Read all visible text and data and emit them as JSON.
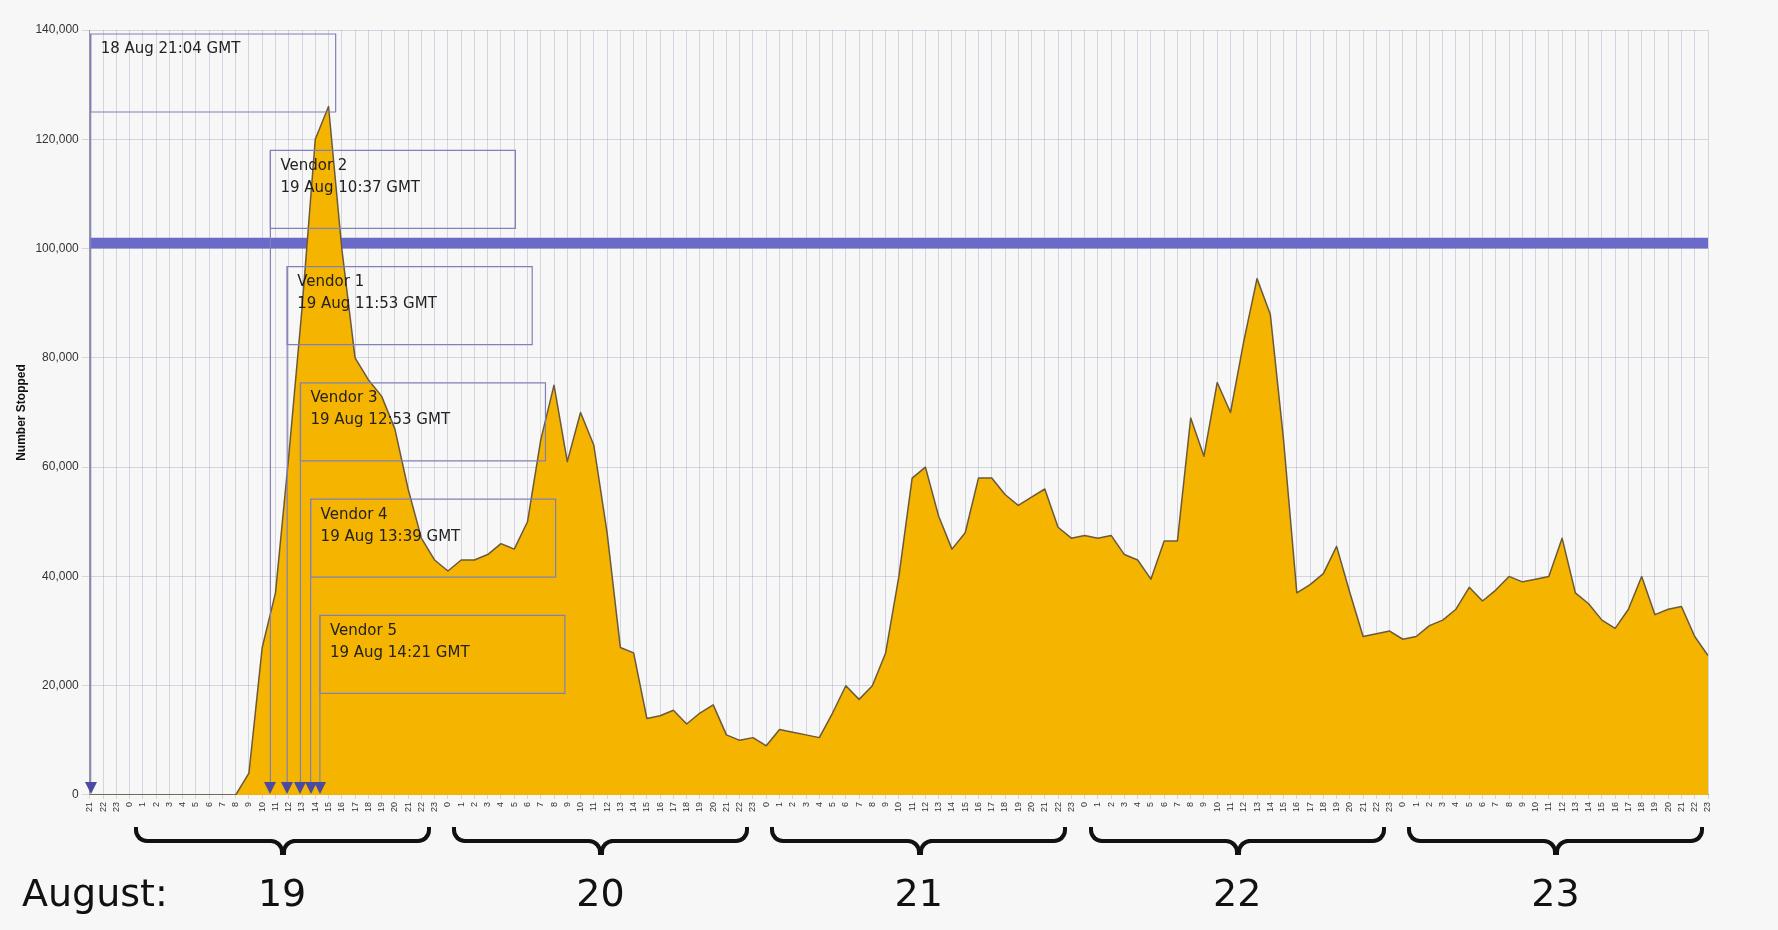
{
  "chart_data": {
    "type": "area",
    "ylabel": "Number Stopped",
    "xlim": [
      "--08-18T21:00",
      "--08-23T23:00"
    ],
    "ylim": [
      0,
      140000
    ],
    "yticks": [
      {
        "value": 0,
        "label": "0"
      },
      {
        "value": 20000,
        "label": "20,000"
      },
      {
        "value": 40000,
        "label": "40,000"
      },
      {
        "value": 60000,
        "label": "60,000"
      },
      {
        "value": 80000,
        "label": "80,000"
      },
      {
        "value": 100000,
        "label": "100,000"
      },
      {
        "value": 120000,
        "label": "120,000"
      },
      {
        "value": 140000,
        "label": "140,000"
      }
    ],
    "xticks": [
      {
        "value": "--08-18T21:00",
        "label": "21"
      },
      {
        "value": "--08-18T22:00",
        "label": "22"
      },
      {
        "value": "--08-18T23:00",
        "label": "23"
      },
      {
        "value": "--08-19T00:00",
        "label": "0"
      },
      {
        "value": "--08-19T01:00",
        "label": "1"
      },
      {
        "value": "--08-19T02:00",
        "label": "2"
      },
      {
        "value": "--08-19T03:00",
        "label": "3"
      },
      {
        "value": "--08-19T04:00",
        "label": "4"
      },
      {
        "value": "--08-19T05:00",
        "label": "5"
      },
      {
        "value": "--08-19T06:00",
        "label": "6"
      },
      {
        "value": "--08-19T07:00",
        "label": "7"
      },
      {
        "value": "--08-19T08:00",
        "label": "8"
      },
      {
        "value": "--08-19T09:00",
        "label": "9"
      },
      {
        "value": "--08-19T10:00",
        "label": "10"
      },
      {
        "value": "--08-19T11:00",
        "label": "11"
      },
      {
        "value": "--08-19T12:00",
        "label": "12"
      },
      {
        "value": "--08-19T13:00",
        "label": "13"
      },
      {
        "value": "--08-19T14:00",
        "label": "14"
      },
      {
        "value": "--08-19T15:00",
        "label": "15"
      },
      {
        "value": "--08-19T16:00",
        "label": "16"
      },
      {
        "value": "--08-19T17:00",
        "label": "17"
      },
      {
        "value": "--08-19T18:00",
        "label": "18"
      },
      {
        "value": "--08-19T19:00",
        "label": "19"
      },
      {
        "value": "--08-19T20:00",
        "label": "20"
      },
      {
        "value": "--08-19T21:00",
        "label": "21"
      },
      {
        "value": "--08-19T22:00",
        "label": "22"
      },
      {
        "value": "--08-19T23:00",
        "label": "23"
      },
      {
        "value": "--08-20T00:00",
        "label": "0"
      },
      {
        "value": "--08-20T01:00",
        "label": "1"
      },
      {
        "value": "--08-20T02:00",
        "label": "2"
      },
      {
        "value": "--08-20T03:00",
        "label": "3"
      },
      {
        "value": "--08-20T04:00",
        "label": "4"
      },
      {
        "value": "--08-20T05:00",
        "label": "5"
      },
      {
        "value": "--08-20T06:00",
        "label": "6"
      },
      {
        "value": "--08-20T07:00",
        "label": "7"
      },
      {
        "value": "--08-20T08:00",
        "label": "8"
      },
      {
        "value": "--08-20T09:00",
        "label": "9"
      },
      {
        "value": "--08-20T10:00",
        "label": "10"
      },
      {
        "value": "--08-20T11:00",
        "label": "11"
      },
      {
        "value": "--08-20T12:00",
        "label": "12"
      },
      {
        "value": "--08-20T13:00",
        "label": "13"
      },
      {
        "value": "--08-20T14:00",
        "label": "14"
      },
      {
        "value": "--08-20T15:00",
        "label": "15"
      },
      {
        "value": "--08-20T16:00",
        "label": "16"
      },
      {
        "value": "--08-20T17:00",
        "label": "17"
      },
      {
        "value": "--08-20T18:00",
        "label": "18"
      },
      {
        "value": "--08-20T19:00",
        "label": "19"
      },
      {
        "value": "--08-20T20:00",
        "label": "20"
      },
      {
        "value": "--08-20T21:00",
        "label": "21"
      },
      {
        "value": "--08-20T22:00",
        "label": "22"
      },
      {
        "value": "--08-20T23:00",
        "label": "23"
      },
      {
        "value": "--08-21T00:00",
        "label": "0"
      },
      {
        "value": "--08-21T01:00",
        "label": "1"
      },
      {
        "value": "--08-21T02:00",
        "label": "2"
      },
      {
        "value": "--08-21T03:00",
        "label": "3"
      },
      {
        "value": "--08-21T04:00",
        "label": "4"
      },
      {
        "value": "--08-21T05:00",
        "label": "5"
      },
      {
        "value": "--08-21T06:00",
        "label": "6"
      },
      {
        "value": "--08-21T07:00",
        "label": "7"
      },
      {
        "value": "--08-21T08:00",
        "label": "8"
      },
      {
        "value": "--08-21T09:00",
        "label": "9"
      },
      {
        "value": "--08-21T10:00",
        "label": "10"
      },
      {
        "value": "--08-21T11:00",
        "label": "11"
      },
      {
        "value": "--08-21T12:00",
        "label": "12"
      },
      {
        "value": "--08-21T13:00",
        "label": "13"
      },
      {
        "value": "--08-21T14:00",
        "label": "14"
      },
      {
        "value": "--08-21T15:00",
        "label": "15"
      },
      {
        "value": "--08-21T16:00",
        "label": "16"
      },
      {
        "value": "--08-21T17:00",
        "label": "17"
      },
      {
        "value": "--08-21T18:00",
        "label": "18"
      },
      {
        "value": "--08-21T19:00",
        "label": "19"
      },
      {
        "value": "--08-21T20:00",
        "label": "20"
      },
      {
        "value": "--08-21T21:00",
        "label": "21"
      },
      {
        "value": "--08-21T22:00",
        "label": "22"
      },
      {
        "value": "--08-21T23:00",
        "label": "23"
      },
      {
        "value": "--08-22T00:00",
        "label": "0"
      },
      {
        "value": "--08-22T01:00",
        "label": "1"
      },
      {
        "value": "--08-22T02:00",
        "label": "2"
      },
      {
        "value": "--08-22T03:00",
        "label": "3"
      },
      {
        "value": "--08-22T04:00",
        "label": "4"
      },
      {
        "value": "--08-22T05:00",
        "label": "5"
      },
      {
        "value": "--08-22T06:00",
        "label": "6"
      },
      {
        "value": "--08-22T07:00",
        "label": "7"
      },
      {
        "value": "--08-22T08:00",
        "label": "8"
      },
      {
        "value": "--08-22T09:00",
        "label": "9"
      },
      {
        "value": "--08-22T10:00",
        "label": "10"
      },
      {
        "value": "--08-22T11:00",
        "label": "11"
      },
      {
        "value": "--08-22T12:00",
        "label": "12"
      },
      {
        "value": "--08-22T13:00",
        "label": "13"
      },
      {
        "value": "--08-22T14:00",
        "label": "14"
      },
      {
        "value": "--08-22T15:00",
        "label": "15"
      },
      {
        "value": "--08-22T16:00",
        "label": "16"
      },
      {
        "value": "--08-22T17:00",
        "label": "17"
      },
      {
        "value": "--08-22T18:00",
        "label": "18"
      },
      {
        "value": "--08-22T19:00",
        "label": "19"
      },
      {
        "value": "--08-22T20:00",
        "label": "20"
      },
      {
        "value": "--08-22T21:00",
        "label": "21"
      },
      {
        "value": "--08-22T22:00",
        "label": "22"
      },
      {
        "value": "--08-22T23:00",
        "label": "23"
      },
      {
        "value": "--08-23T00:00",
        "label": "0"
      },
      {
        "value": "--08-23T01:00",
        "label": "1"
      },
      {
        "value": "--08-23T02:00",
        "label": "2"
      },
      {
        "value": "--08-23T03:00",
        "label": "3"
      },
      {
        "value": "--08-23T04:00",
        "label": "4"
      },
      {
        "value": "--08-23T05:00",
        "label": "5"
      },
      {
        "value": "--08-23T06:00",
        "label": "6"
      },
      {
        "value": "--08-23T07:00",
        "label": "7"
      },
      {
        "value": "--08-23T08:00",
        "label": "8"
      },
      {
        "value": "--08-23T09:00",
        "label": "9"
      },
      {
        "value": "--08-23T10:00",
        "label": "10"
      },
      {
        "value": "--08-23T11:00",
        "label": "11"
      },
      {
        "value": "--08-23T12:00",
        "label": "12"
      },
      {
        "value": "--08-23T13:00",
        "label": "13"
      },
      {
        "value": "--08-23T14:00",
        "label": "14"
      },
      {
        "value": "--08-23T15:00",
        "label": "15"
      },
      {
        "value": "--08-23T16:00",
        "label": "16"
      },
      {
        "value": "--08-23T17:00",
        "label": "17"
      },
      {
        "value": "--08-23T18:00",
        "label": "18"
      },
      {
        "value": "--08-23T19:00",
        "label": "19"
      },
      {
        "value": "--08-23T20:00",
        "label": "20"
      },
      {
        "value": "--08-23T21:00",
        "label": "21"
      },
      {
        "value": "--08-23T22:00",
        "label": "22"
      },
      {
        "value": "--08-23T23:00",
        "label": "23"
      }
    ],
    "grid": true,
    "legend": false,
    "bands": [
      {
        "axis": "y",
        "from": 100000,
        "to": 102000,
        "color": "#6a6ac8"
      }
    ],
    "ref_lines": [
      {
        "axis": "x",
        "value": "--08-18T21:04",
        "label": "18 Aug 21:04 GMT",
        "color": "#8080b8"
      },
      {
        "axis": "x",
        "value": "--08-19T10:37",
        "label": "Vendor 2\n19 Aug 10:37 GMT",
        "color": "#8080b8"
      },
      {
        "axis": "x",
        "value": "--08-19T11:53",
        "label": "Vendor 1\n19 Aug 11:53 GMT",
        "color": "#8080b8"
      },
      {
        "axis": "x",
        "value": "--08-19T12:53",
        "label": "Vendor 3\n19 Aug 12:53 GMT",
        "color": "#8080b8"
      },
      {
        "axis": "x",
        "value": "--08-19T13:39",
        "label": "Vendor 4\n19 Aug 13:39 GMT",
        "color": "#8080b8"
      },
      {
        "axis": "x",
        "value": "--08-19T14:21",
        "label": "Vendor 5\n19 Aug 14:21 GMT",
        "color": "#8080b8"
      }
    ],
    "series": [
      {
        "color": "#f5b400",
        "x": [
          "--08-18T21:00",
          "--08-18T22:00",
          "--08-18T23:00",
          "--08-19T00:00",
          "--08-19T01:00",
          "--08-19T02:00",
          "--08-19T03:00",
          "--08-19T04:00",
          "--08-19T05:00",
          "--08-19T06:00",
          "--08-19T07:00",
          "--08-19T08:00",
          "--08-19T09:00",
          "--08-19T10:00",
          "--08-19T11:00",
          "--08-19T12:00",
          "--08-19T13:00",
          "--08-19T14:00",
          "--08-19T15:00",
          "--08-19T16:00",
          "--08-19T17:00",
          "--08-19T18:00",
          "--08-19T19:00",
          "--08-19T20:00",
          "--08-19T21:00",
          "--08-19T22:00",
          "--08-19T23:00",
          "--08-20T00:00",
          "--08-20T01:00",
          "--08-20T02:00",
          "--08-20T03:00",
          "--08-20T04:00",
          "--08-20T05:00",
          "--08-20T06:00",
          "--08-20T07:00",
          "--08-20T08:00",
          "--08-20T09:00",
          "--08-20T10:00",
          "--08-20T11:00",
          "--08-20T12:00",
          "--08-20T13:00",
          "--08-20T14:00",
          "--08-20T15:00",
          "--08-20T16:00",
          "--08-20T17:00",
          "--08-20T18:00",
          "--08-20T19:00",
          "--08-20T20:00",
          "--08-20T21:00",
          "--08-20T22:00",
          "--08-20T23:00",
          "--08-21T00:00",
          "--08-21T01:00",
          "--08-21T02:00",
          "--08-21T03:00",
          "--08-21T04:00",
          "--08-21T05:00",
          "--08-21T06:00",
          "--08-21T07:00",
          "--08-21T08:00",
          "--08-21T09:00",
          "--08-21T10:00",
          "--08-21T11:00",
          "--08-21T12:00",
          "--08-21T13:00",
          "--08-21T14:00",
          "--08-21T15:00",
          "--08-21T16:00",
          "--08-21T17:00",
          "--08-21T18:00",
          "--08-21T19:00",
          "--08-21T20:00",
          "--08-21T21:00",
          "--08-21T22:00",
          "--08-21T23:00",
          "--08-22T00:00",
          "--08-22T01:00",
          "--08-22T02:00",
          "--08-22T03:00",
          "--08-22T04:00",
          "--08-22T05:00",
          "--08-22T06:00",
          "--08-22T07:00",
          "--08-22T08:00",
          "--08-22T09:00",
          "--08-22T10:00",
          "--08-22T11:00",
          "--08-22T12:00",
          "--08-22T13:00",
          "--08-22T14:00",
          "--08-22T15:00",
          "--08-22T16:00",
          "--08-22T17:00",
          "--08-22T18:00",
          "--08-22T19:00",
          "--08-22T20:00",
          "--08-22T21:00",
          "--08-22T22:00",
          "--08-22T23:00",
          "--08-23T00:00",
          "--08-23T01:00",
          "--08-23T02:00",
          "--08-23T03:00",
          "--08-23T04:00",
          "--08-23T05:00",
          "--08-23T06:00",
          "--08-23T07:00",
          "--08-23T08:00",
          "--08-23T09:00",
          "--08-23T10:00",
          "--08-23T11:00",
          "--08-23T12:00",
          "--08-23T13:00",
          "--08-23T14:00",
          "--08-23T15:00",
          "--08-23T16:00",
          "--08-23T17:00",
          "--08-23T18:00",
          "--08-23T19:00",
          "--08-23T20:00",
          "--08-23T21:00",
          "--08-23T22:00",
          "--08-23T23:00"
        ],
        "values": [
          0,
          0,
          0,
          0,
          0,
          0,
          0,
          0,
          0,
          0,
          0,
          0,
          4000,
          27000,
          37000,
          62000,
          89000,
          120000,
          126000,
          100000,
          80000,
          76000,
          73000,
          67000,
          56000,
          47000,
          43000,
          41000,
          43000,
          43000,
          44000,
          46000,
          45000,
          50000,
          65000,
          75000,
          61000,
          70000,
          64000,
          48000,
          27000,
          26000,
          14000,
          14500,
          15500,
          13000,
          15000,
          16500,
          11000,
          10000,
          10500,
          9000,
          12000,
          11500,
          11000,
          10500,
          15000,
          20000,
          17500,
          20000,
          26000,
          40000,
          58000,
          60000,
          51000,
          45000,
          48000,
          58000,
          58000,
          55000,
          53000,
          54500,
          56000,
          49000,
          47000,
          47500,
          47000,
          47500,
          44000,
          43000,
          39500,
          46500,
          46500,
          69000,
          62000,
          75500,
          70000,
          83000,
          94500,
          88000,
          65000,
          37000,
          38500,
          40500,
          45500,
          37000,
          29000,
          29500,
          30000,
          28500,
          29000,
          31000,
          32000,
          34000,
          38000,
          35500,
          37500,
          40000,
          39000,
          39500,
          40000,
          47000,
          37000,
          35000,
          32000,
          30500,
          34000,
          40000,
          33000,
          34000,
          34500,
          29000,
          25500
        ]
      }
    ],
    "annotations": [
      "August:",
      "19",
      "20",
      "21",
      "22",
      "23"
    ]
  }
}
